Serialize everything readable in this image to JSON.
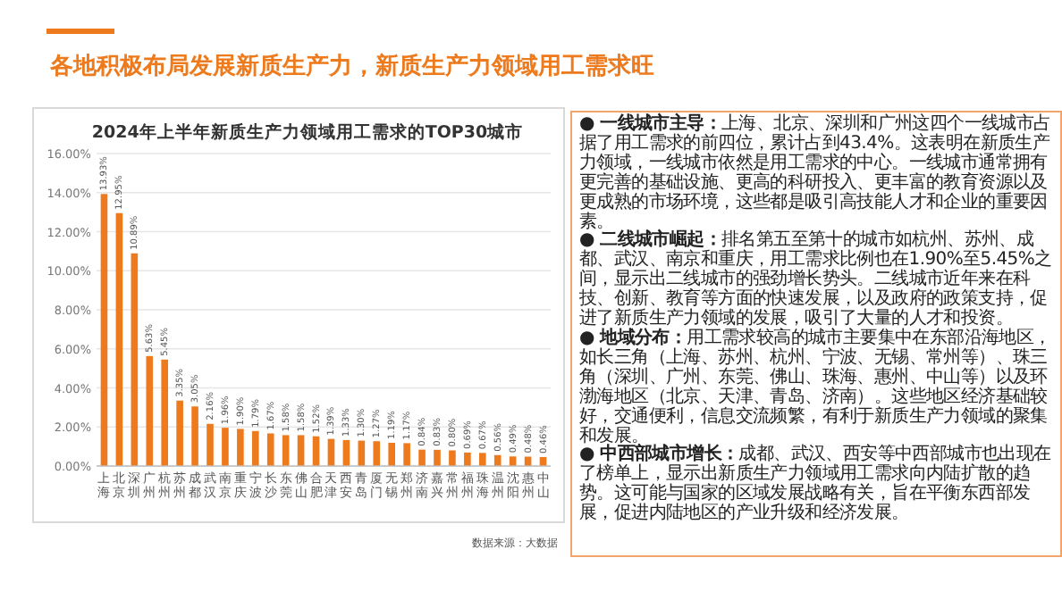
{
  "chart_data": [
    {
      "type": "other",
      "title": "各地积极布局发展新质生产力，新质生产力领域用工需求旺"
    },
    {
      "type": "bar",
      "title": "2024年上半年新质生产力领域用工需求的TOP30城市",
      "categories": [
        "上海",
        "北京",
        "深圳",
        "广州",
        "杭州",
        "苏州",
        "成都",
        "武汉",
        "南京",
        "重庆",
        "宁波",
        "长沙",
        "东莞",
        "佛山",
        "合肥",
        "天津",
        "西安",
        "青岛",
        "厦门",
        "无锡",
        "郑州",
        "济南",
        "嘉兴",
        "常州",
        "福州",
        "珠海",
        "温州",
        "沈阳",
        "惠州",
        "中山"
      ],
      "values": [
        13.93,
        12.95,
        10.89,
        5.63,
        5.45,
        3.35,
        3.05,
        2.16,
        1.96,
        1.9,
        1.79,
        1.67,
        1.58,
        1.58,
        1.52,
        1.39,
        1.33,
        1.3,
        1.27,
        1.19,
        1.17,
        0.84,
        0.83,
        0.8,
        0.69,
        0.67,
        0.56,
        0.49,
        0.48,
        0.46
      ],
      "value_labels": [
        "13.93%",
        "12.95%",
        "10.89%",
        "5.63%",
        "5.45%",
        "3.35%",
        "3.05%",
        "2.16%",
        "1.96%",
        "1.90%",
        "1.79%",
        "1.67%",
        "1.58%",
        "1.58%",
        "1.52%",
        "1.39%",
        "1.33%",
        "1.30%",
        "1.27%",
        "1.19%",
        "1.17%",
        "0.84%",
        "0.83%",
        "0.80%",
        "0.69%",
        "0.67%",
        "0.56%",
        "0.49%",
        "0.48%",
        "0.46%"
      ],
      "color": "#ee7a1e",
      "grid": "y",
      "ylim": [
        0,
        16
      ],
      "yticks": [
        {
          "value": 0,
          "label": "0.00%"
        },
        {
          "value": 2,
          "label": "2.00%"
        },
        {
          "value": 4,
          "label": "4.00%"
        },
        {
          "value": 6,
          "label": "6.00%"
        },
        {
          "value": 8,
          "label": "8.00%"
        },
        {
          "value": 10,
          "label": "10.00%"
        },
        {
          "value": 12,
          "label": "12.00%"
        },
        {
          "value": 14,
          "label": "14.00%"
        },
        {
          "value": 16,
          "label": "16.00%"
        }
      ],
      "annotations": [
        "数据来源：大数据"
      ]
    },
    {
      "type": "other",
      "annotations": [
        "● 一线城市主导：",
        "上海、北京、深圳和广州这四个一线城市占据了用工需求的前四位，累计占到43.4%。这表明在新质生产力领域，一线城市依然是用工需求的中心。一线城市通常拥有更完善的基础设施、更高的科研投入、更丰富的教育资源以及更成熟的市场环境，这些都是吸引高技能人才和企业的重要因素。",
        "● 二线城市崛起：",
        "排名第五至第十的城市如杭州、苏州、成都、武汉、南京和重庆，用工需求比例也在1.90%至5.45%之间，显示出二线城市的强劲增长势头。二线城市近年来在科技、创新、教育等方面的快速发展，以及政府的政策支持，促进了新质生产力领域的发展，吸引了大量的人才和投资。",
        "● 地域分布：",
        "用工需求较高的城市主要集中在东部沿海地区，如长三角（上海、苏州、杭州、宁波、无锡、常州等）、珠三角（深圳、广州、东莞、佛山、珠海、惠州、中山等）以及环渤海地区（北京、天津、青岛、济南）。这些地区经济基础较好，交通便利，信息交流频繁，有利于新质生产力领域的聚集和发展。",
        "● 中西部城市增长：",
        "成都、武汉、西安等中西部城市也出现在了榜单上，显示出新质生产力领域用工需求向内陆扩散的趋势。这可能与国家的区域发展战略有关，旨在平衡东西部发展，促进内陆地区的产业升级和经济发展。"
      ]
    }
  ]
}
